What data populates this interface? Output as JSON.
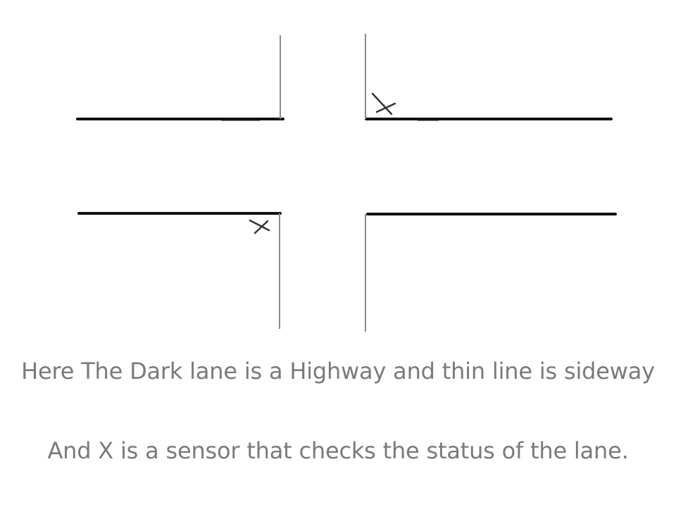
{
  "caption": {
    "line1": "Here The Dark lane is a Highway and thin line is sideway",
    "line2": "And X is a sensor that checks the status of the lane."
  },
  "colors": {
    "highway": "#111111",
    "sideway": "#8a8a8a",
    "sensor": "#333333",
    "text": "#7a7a7a",
    "background": "#ffffff"
  }
}
